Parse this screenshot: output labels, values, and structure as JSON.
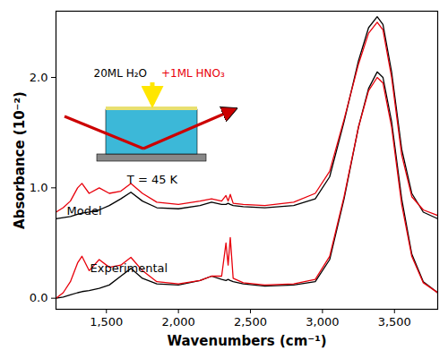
{
  "chart_data": {
    "type": "line",
    "x_label": "Wavenumbers (cm⁻¹)",
    "y_label": "Absorbance (10⁻²)",
    "xlim": [
      1150,
      3800
    ],
    "xticks": [
      1500,
      2000,
      2500,
      3000,
      3500
    ],
    "ylim": [
      -0.1,
      2.6
    ],
    "yticks": [
      0,
      1,
      2
    ],
    "grid": false,
    "x": [
      1150,
      1200,
      1250,
      1300,
      1330,
      1380,
      1450,
      1520,
      1600,
      1670,
      1750,
      1850,
      2000,
      2150,
      2230,
      2300,
      2330,
      2345,
      2360,
      2380,
      2450,
      2600,
      2800,
      2950,
      3050,
      3150,
      3250,
      3320,
      3380,
      3420,
      3480,
      3550,
      3620,
      3700,
      3800
    ],
    "series": [
      {
        "color": "#000000",
        "values": [
          0.72,
          0.73,
          0.74,
          0.76,
          0.77,
          0.78,
          0.8,
          0.84,
          0.9,
          0.96,
          0.88,
          0.82,
          0.81,
          0.84,
          0.87,
          0.85,
          0.85,
          0.86,
          0.85,
          0.84,
          0.83,
          0.82,
          0.84,
          0.9,
          1.1,
          1.6,
          2.15,
          2.45,
          2.55,
          2.48,
          2.05,
          1.35,
          0.95,
          0.78,
          0.72
        ]
      },
      {
        "color": "#e8000b",
        "values": [
          0.78,
          0.82,
          0.88,
          1.0,
          1.04,
          0.95,
          1.0,
          0.95,
          0.97,
          1.04,
          0.95,
          0.87,
          0.85,
          0.88,
          0.9,
          0.88,
          0.93,
          0.88,
          0.94,
          0.86,
          0.85,
          0.84,
          0.87,
          0.95,
          1.15,
          1.62,
          2.12,
          2.4,
          2.5,
          2.43,
          2.0,
          1.3,
          0.92,
          0.8,
          0.75
        ]
      },
      {
        "color": "#000000",
        "values": [
          0.0,
          0.01,
          0.03,
          0.05,
          0.06,
          0.07,
          0.09,
          0.12,
          0.2,
          0.27,
          0.18,
          0.13,
          0.12,
          0.16,
          0.2,
          0.17,
          0.16,
          0.17,
          0.16,
          0.15,
          0.13,
          0.11,
          0.12,
          0.15,
          0.35,
          0.9,
          1.55,
          1.9,
          2.05,
          2.0,
          1.6,
          0.9,
          0.4,
          0.15,
          0.05
        ]
      },
      {
        "color": "#e8000b",
        "values": [
          0.0,
          0.05,
          0.15,
          0.32,
          0.38,
          0.25,
          0.35,
          0.28,
          0.3,
          0.37,
          0.25,
          0.15,
          0.13,
          0.16,
          0.2,
          0.2,
          0.5,
          0.3,
          0.55,
          0.18,
          0.14,
          0.12,
          0.13,
          0.17,
          0.38,
          0.92,
          1.55,
          1.88,
          2.0,
          1.95,
          1.55,
          0.85,
          0.38,
          0.14,
          0.05
        ]
      }
    ],
    "annotations": [
      {
        "text": "Model",
        "color": "#000000"
      },
      {
        "text": "Experimental",
        "color": "#000000"
      },
      {
        "text": "20ML H₂O",
        "color": "#000000"
      },
      {
        "text": "+1ML HNO₃",
        "color": "#e8000b"
      },
      {
        "text": "T = 45 K",
        "color": "#000000"
      }
    ]
  }
}
